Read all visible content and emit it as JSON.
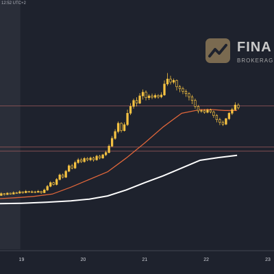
{
  "header": {
    "time_label": "12:52 UTC+2"
  },
  "watermark": {
    "name": "FINA",
    "sub": "BROKERAGE",
    "logo_icon": "chart-trend-logo-icon"
  },
  "colors": {
    "background": "#1e222d",
    "shaded_session": "#2a2e39",
    "candle": "#f5c242",
    "ma_fast": "#e0663a",
    "ma_slow": "#ffffff",
    "horizontal_level": "#9a5a5a",
    "axis_text": "#d0d3da"
  },
  "chart_data": {
    "type": "candlestick",
    "title": "",
    "xlabel": "",
    "ylabel": "",
    "x_axis": {
      "tick_labels": [
        "19",
        "20",
        "21",
        "22",
        "23"
      ],
      "tick_positions": [
        19,
        20,
        21,
        22,
        23
      ],
      "range": [
        18.65,
        23.1
      ]
    },
    "ylim": [
      0,
      300
    ],
    "horizontal_levels": [
      107,
      206,
      116
    ],
    "candles": [
      [
        18.67,
        10,
        14,
        17,
        9
      ],
      [
        18.72,
        14,
        12,
        15,
        10
      ],
      [
        18.77,
        12,
        15,
        17,
        11
      ],
      [
        18.82,
        15,
        13,
        16,
        12
      ],
      [
        18.87,
        13,
        16,
        19,
        12
      ],
      [
        18.92,
        16,
        15,
        18,
        14
      ],
      [
        18.97,
        15,
        18,
        21,
        14
      ],
      [
        19.02,
        18,
        16,
        19,
        14
      ],
      [
        19.07,
        16,
        19,
        22,
        15
      ],
      [
        19.12,
        19,
        17,
        20,
        16
      ],
      [
        19.17,
        17,
        18,
        21,
        16
      ],
      [
        19.22,
        18,
        17,
        20,
        15
      ],
      [
        19.27,
        17,
        19,
        22,
        16
      ],
      [
        19.32,
        19,
        16,
        20,
        14
      ],
      [
        19.37,
        16,
        22,
        25,
        15
      ],
      [
        19.42,
        22,
        30,
        33,
        20
      ],
      [
        19.47,
        30,
        38,
        41,
        28
      ],
      [
        19.52,
        38,
        34,
        40,
        32
      ],
      [
        19.57,
        34,
        45,
        48,
        32
      ],
      [
        19.62,
        45,
        55,
        58,
        43
      ],
      [
        19.67,
        55,
        50,
        58,
        47
      ],
      [
        19.72,
        50,
        63,
        66,
        48
      ],
      [
        19.77,
        63,
        75,
        78,
        61
      ],
      [
        19.82,
        75,
        70,
        79,
        67
      ],
      [
        19.87,
        70,
        82,
        86,
        68
      ],
      [
        19.92,
        82,
        88,
        92,
        79
      ],
      [
        19.97,
        88,
        84,
        92,
        81
      ],
      [
        20.02,
        84,
        91,
        94,
        82
      ],
      [
        20.07,
        91,
        88,
        94,
        85
      ],
      [
        20.12,
        88,
        92,
        95,
        85
      ],
      [
        20.17,
        92,
        88,
        95,
        84
      ],
      [
        20.22,
        88,
        96,
        99,
        86
      ],
      [
        20.27,
        96,
        92,
        99,
        89
      ],
      [
        20.32,
        92,
        99,
        101,
        90
      ],
      [
        20.37,
        99,
        104,
        108,
        96
      ],
      [
        20.42,
        104,
        118,
        122,
        102
      ],
      [
        20.47,
        118,
        135,
        140,
        116
      ],
      [
        20.52,
        135,
        150,
        155,
        132
      ],
      [
        20.57,
        150,
        168,
        172,
        146
      ],
      [
        20.62,
        168,
        152,
        170,
        148
      ],
      [
        20.67,
        152,
        165,
        170,
        150
      ],
      [
        20.72,
        165,
        190,
        198,
        162
      ],
      [
        20.77,
        190,
        205,
        212,
        186
      ],
      [
        20.82,
        205,
        218,
        222,
        200
      ],
      [
        20.87,
        218,
        212,
        225,
        205
      ],
      [
        20.92,
        212,
        228,
        234,
        210
      ],
      [
        20.97,
        228,
        236,
        242,
        220
      ],
      [
        21.02,
        236,
        224,
        240,
        218
      ],
      [
        21.07,
        224,
        228,
        232,
        219
      ],
      [
        21.12,
        228,
        225,
        233,
        221
      ],
      [
        21.17,
        225,
        229,
        233,
        222
      ],
      [
        21.22,
        229,
        226,
        232,
        222
      ],
      [
        21.27,
        226,
        230,
        236,
        223
      ],
      [
        21.32,
        230,
        254,
        262,
        228
      ],
      [
        21.37,
        254,
        265,
        278,
        250
      ],
      [
        21.42,
        265,
        258,
        272,
        253
      ],
      [
        21.47,
        258,
        262,
        266,
        254
      ],
      [
        21.52,
        262,
        248,
        264,
        240
      ],
      [
        21.57,
        248,
        244,
        252,
        236
      ],
      [
        21.62,
        244,
        238,
        248,
        232
      ],
      [
        21.67,
        238,
        233,
        242,
        226
      ],
      [
        21.72,
        233,
        226,
        236,
        218
      ],
      [
        21.77,
        226,
        218,
        230,
        210
      ],
      [
        21.82,
        218,
        205,
        222,
        200
      ],
      [
        21.87,
        205,
        195,
        208,
        190
      ],
      [
        21.92,
        195,
        196,
        199,
        191
      ],
      [
        21.97,
        196,
        192,
        199,
        189
      ],
      [
        22.02,
        192,
        197,
        200,
        190
      ],
      [
        22.07,
        197,
        193,
        200,
        190
      ],
      [
        22.12,
        193,
        185,
        196,
        180
      ],
      [
        22.17,
        185,
        176,
        188,
        170
      ],
      [
        22.22,
        176,
        170,
        180,
        164
      ],
      [
        22.27,
        170,
        166,
        174,
        162
      ],
      [
        22.32,
        166,
        178,
        180,
        164
      ],
      [
        22.37,
        178,
        190,
        193,
        175
      ],
      [
        22.42,
        190,
        198,
        202,
        186
      ],
      [
        22.47,
        198,
        208,
        214,
        195
      ],
      [
        22.52,
        208,
        202,
        212,
        198
      ]
    ],
    "series": [
      {
        "type": "line",
        "color": "#e0663a",
        "x": [
          18.65,
          18.9,
          19.2,
          19.5,
          19.8,
          20.1,
          20.4,
          20.7,
          21.0,
          21.3,
          21.6,
          21.9,
          22.1,
          22.3,
          22.5
        ],
        "y": [
          3,
          5,
          8,
          13,
          28,
          45,
          62,
          92,
          125,
          160,
          190,
          198,
          198,
          196,
          196
        ]
      },
      {
        "type": "line",
        "color": "#ffffff",
        "x": [
          18.65,
          19.0,
          19.4,
          19.8,
          20.1,
          20.4,
          20.7,
          21.0,
          21.3,
          21.6,
          21.9,
          22.2,
          22.5
        ],
        "y": [
          -8,
          -7,
          -5,
          -2,
          2,
          9,
          22,
          38,
          53,
          70,
          87,
          93,
          98
        ]
      }
    ]
  }
}
